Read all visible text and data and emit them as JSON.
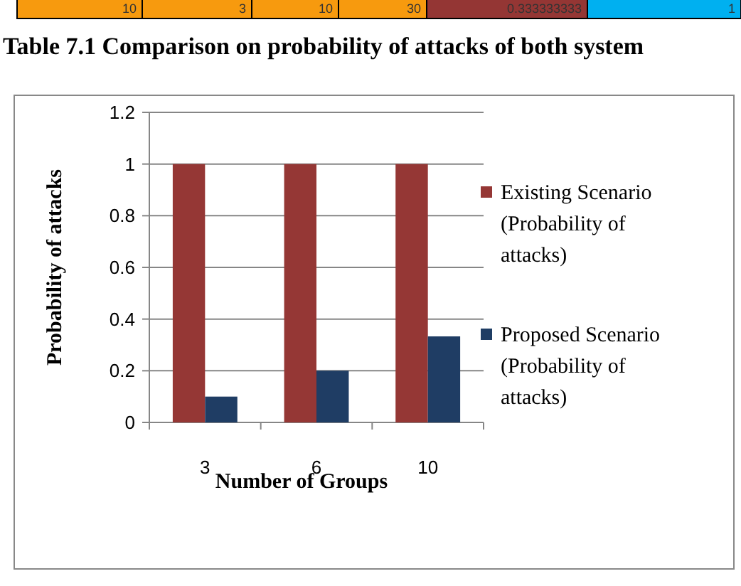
{
  "chart_data": {
    "type": "bar",
    "xlabel": "Number of Groups",
    "ylabel": "Probability of attacks",
    "categories": [
      "3",
      "6",
      "10"
    ],
    "series": [
      {
        "name": "Existing Scenario (Probability of attacks)",
        "color": "#953735",
        "values": [
          1,
          1,
          1
        ]
      },
      {
        "name": "Proposed Scenario (Probability of attacks)",
        "color": "#1f3d64",
        "values": [
          0.1,
          0.2,
          0.333
        ]
      }
    ],
    "ylim": [
      0,
      1.2
    ],
    "yticks": [
      0,
      {
        "value": 0.2,
        "label": "0.2"
      },
      {
        "value": 0.4,
        "label": "0.4"
      },
      {
        "value": 0.6,
        "label": "0.6"
      },
      {
        "value": 0.8,
        "label": "0.8"
      },
      1,
      {
        "value": 1.2,
        "label": "1.2"
      }
    ],
    "grid": "y",
    "legend": "right",
    "annotations": [
      "10",
      "3",
      "10",
      "30",
      "0.333333333",
      "1",
      "Table 7.1 Comparison on probability of attacks of both system"
    ]
  }
}
